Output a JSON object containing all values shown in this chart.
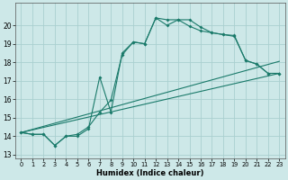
{
  "xlabel": "Humidex (Indice chaleur)",
  "xlim": [
    -0.5,
    23.5
  ],
  "ylim": [
    12.8,
    21.2
  ],
  "yticks": [
    13,
    14,
    15,
    16,
    17,
    18,
    19,
    20
  ],
  "xticks": [
    0,
    1,
    2,
    3,
    4,
    5,
    6,
    7,
    8,
    9,
    10,
    11,
    12,
    13,
    14,
    15,
    16,
    17,
    18,
    19,
    20,
    21,
    22,
    23
  ],
  "bg_color": "#cde8e8",
  "grid_color": "#aacfcf",
  "line_color": "#1a7a6a",
  "line1_x": [
    0,
    1,
    2,
    3,
    4,
    5,
    6,
    7,
    8,
    9,
    10,
    11,
    12,
    13,
    14,
    15,
    16,
    17,
    18,
    19,
    20,
    21,
    22,
    23
  ],
  "line1_y": [
    14.2,
    14.1,
    14.1,
    13.5,
    14.0,
    14.0,
    14.4,
    17.2,
    15.3,
    18.5,
    19.1,
    19.0,
    20.4,
    20.0,
    20.3,
    20.3,
    19.9,
    19.6,
    19.5,
    19.4,
    18.1,
    17.9,
    17.4,
    17.4
  ],
  "line2_x": [
    0,
    1,
    2,
    3,
    4,
    5,
    6,
    7,
    8,
    9,
    10,
    11,
    12,
    13,
    14,
    15,
    16,
    17,
    18,
    19,
    20,
    21,
    22,
    23
  ],
  "line2_y": [
    14.2,
    14.1,
    14.1,
    13.5,
    14.0,
    14.1,
    14.5,
    15.3,
    15.95,
    18.4,
    19.1,
    19.0,
    20.4,
    20.3,
    20.3,
    19.95,
    19.7,
    19.6,
    19.5,
    19.45,
    18.1,
    17.9,
    17.4,
    17.4
  ],
  "line3_y_start": 14.2,
  "line3_y_end": 18.05,
  "line4_y_start": 14.2,
  "line4_y_end": 17.4
}
